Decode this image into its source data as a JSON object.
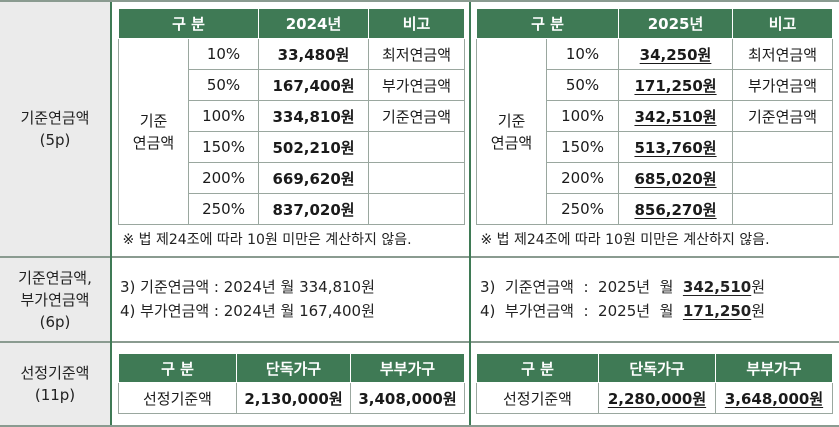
{
  "rows": [
    {
      "label_lines": [
        "기준연금액",
        "(5p)"
      ]
    },
    {
      "label_lines": [
        "기준연금액,",
        "부가연금액",
        "(6p)"
      ]
    },
    {
      "label_lines": [
        "선정기준액",
        "(11p)"
      ]
    }
  ],
  "table_2024": {
    "headers": [
      "구   분",
      "2024년",
      "비고"
    ],
    "group_label": [
      "기준",
      "연금액"
    ],
    "rows": [
      {
        "pct": "10%",
        "value": "33,480원",
        "note": "최저연금액"
      },
      {
        "pct": "50%",
        "value": "167,400원",
        "note": "부가연금액"
      },
      {
        "pct": "100%",
        "value": "334,810원",
        "note": "기준연금액"
      },
      {
        "pct": "150%",
        "value": "502,210원",
        "note": ""
      },
      {
        "pct": "200%",
        "value": "669,620원",
        "note": ""
      },
      {
        "pct": "250%",
        "value": "837,020원",
        "note": ""
      }
    ],
    "footnote": "※ 법 제24조에 따라 10원 미만은 계산하지 않음."
  },
  "table_2025": {
    "headers": [
      "구   분",
      "2025년",
      "비고"
    ],
    "group_label": [
      "기준",
      "연금액"
    ],
    "rows": [
      {
        "pct": "10%",
        "value": "34,250원",
        "note": "최저연금액"
      },
      {
        "pct": "50%",
        "value": "171,250원",
        "note": "부가연금액"
      },
      {
        "pct": "100%",
        "value": "342,510원",
        "note": "기준연금액"
      },
      {
        "pct": "150%",
        "value": "513,760원",
        "note": ""
      },
      {
        "pct": "200%",
        "value": "685,020원",
        "note": ""
      },
      {
        "pct": "250%",
        "value": "856,270원",
        "note": ""
      }
    ],
    "footnote": "※ 법 제24조에 따라 10원 미만은 계산하지 않음."
  },
  "section2_2024": {
    "line1_prefix": "3)  기준연금액  :  2024년  월  334,810원",
    "line2_prefix": "4)  부가연금액  :  2024년  월  167,400원"
  },
  "section2_2025": {
    "line1_prefix": "3)  기준연금액  :  2025년  월  ",
    "line1_value": "342,510",
    "line1_suffix": "원",
    "line2_prefix": "4)  부가연금액  :  2025년  월  ",
    "line2_value": "171,250",
    "line2_suffix": "원"
  },
  "criteria_2024": {
    "headers": [
      "구  분",
      "단독가구",
      "부부가구"
    ],
    "label": "선정기준액",
    "single": "2,130,000원",
    "couple": "3,408,000원"
  },
  "criteria_2025": {
    "headers": [
      "구  분",
      "단독가구",
      "부부가구"
    ],
    "label": "선정기준액",
    "single": "2,280,000원",
    "couple": "3,648,000원"
  }
}
